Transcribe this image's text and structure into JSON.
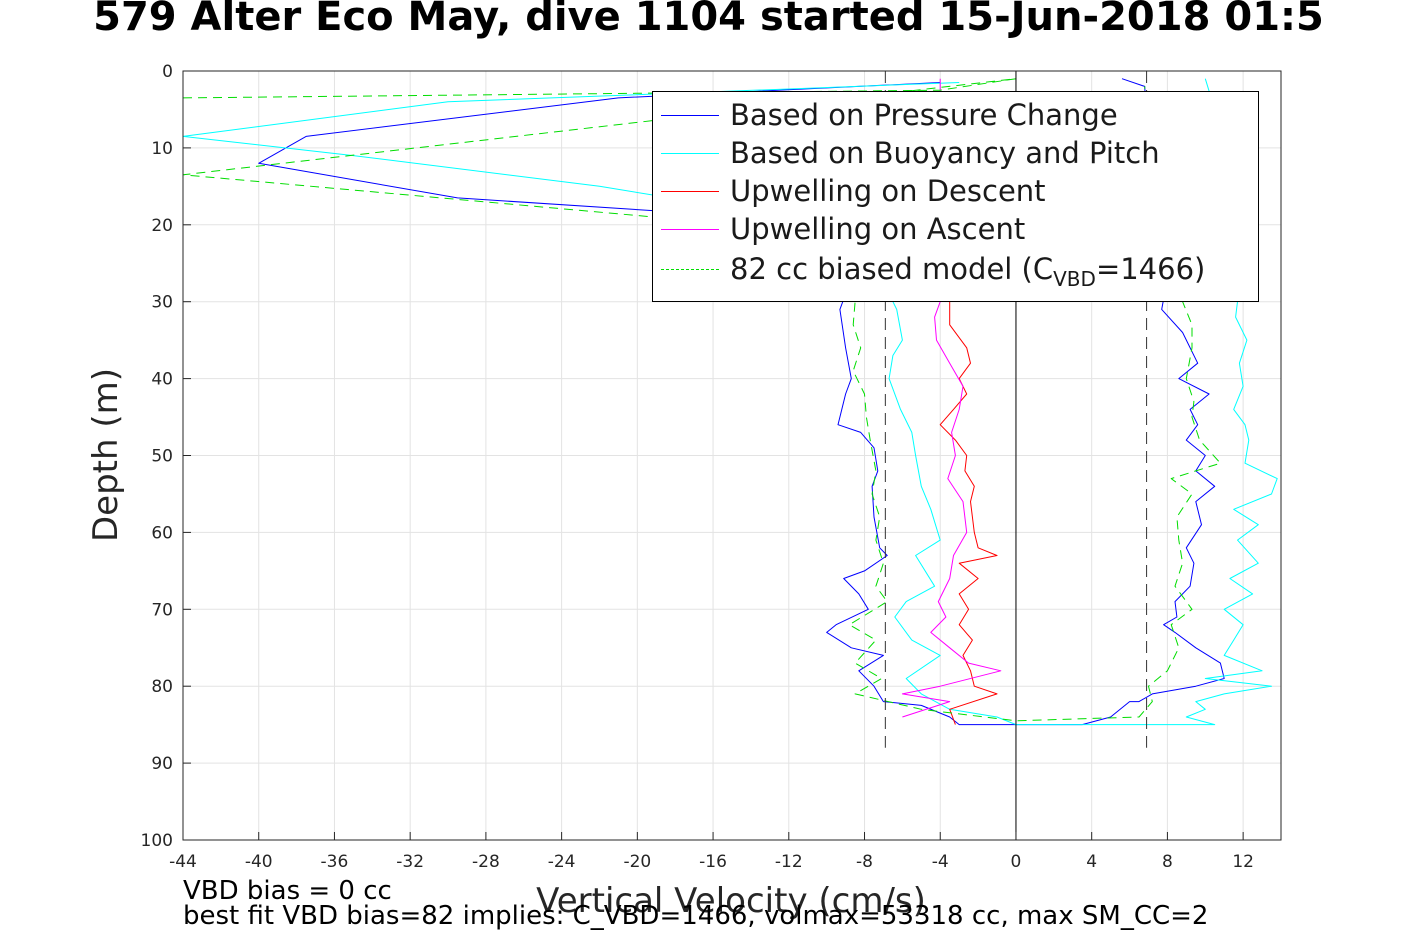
{
  "title": "579 Alter Eco May, dive 1104 started 15-Jun-2018 01:5",
  "footer": {
    "line1": "VBD bias = 0 cc",
    "line2": "best fit VBD bias=82 implies: C_VBD=1466, volmax=53318 cc, max SM_CC=2"
  },
  "legend": {
    "items": [
      {
        "label": "Based on Pressure Change",
        "color": "#0000ff",
        "style": "solid"
      },
      {
        "label": "Based on Buoyancy and Pitch",
        "color": "#00ffff",
        "style": "solid"
      },
      {
        "label": "Upwelling on Descent",
        "color": "#ff0000",
        "style": "solid"
      },
      {
        "label": "Upwelling on Ascent",
        "color": "#ff00ff",
        "style": "solid"
      },
      {
        "label_pre": "82 cc biased model (C",
        "label_sub": "VBD",
        "label_post": "=1466)",
        "color": "#00dd00",
        "style": "dashed"
      }
    ]
  },
  "chart_data": {
    "type": "line",
    "title": "579 Alter Eco May, dive 1104 started 15-Jun-2018 01:5",
    "xlabel": "Vertical Velocity (cm/s)",
    "ylabel": "Depth (m)",
    "xlim": [
      -44,
      14
    ],
    "ylim": [
      0,
      100
    ],
    "y_reversed": true,
    "xticks": [
      -44,
      -40,
      -36,
      -32,
      -28,
      -24,
      -20,
      -16,
      -12,
      -8,
      -4,
      0,
      4,
      8,
      12
    ],
    "yticks": [
      0,
      10,
      20,
      30,
      40,
      50,
      60,
      70,
      80,
      90,
      100
    ],
    "grid": true,
    "legend_position": "top-right",
    "reference_lines": [
      {
        "x": -6.9,
        "from": 0,
        "to": 88,
        "style": "dashed",
        "color": "#333333"
      },
      {
        "x": 6.9,
        "from": 0,
        "to": 88,
        "style": "dashed",
        "color": "#333333"
      },
      {
        "x": 0,
        "from": 0,
        "to": 100,
        "style": "solid",
        "color": "#000000"
      }
    ],
    "series": [
      {
        "name": "Based on Pressure Change",
        "color": "#0000ff",
        "dash": false,
        "points": [
          [
            -4,
            1.5
          ],
          [
            -21,
            3.5
          ],
          [
            -37.5,
            8.5
          ],
          [
            -40,
            12
          ],
          [
            -29.5,
            16.5
          ],
          [
            -17,
            18.5
          ],
          [
            -12,
            20
          ],
          [
            -9.5,
            24
          ],
          [
            -9,
            29
          ],
          [
            -9.3,
            31
          ],
          [
            -9,
            36
          ],
          [
            -8.7,
            40
          ],
          [
            -9,
            42
          ],
          [
            -9.2,
            44
          ],
          [
            -9.4,
            46
          ],
          [
            -8.2,
            47
          ],
          [
            -7.5,
            49
          ],
          [
            -7.3,
            52
          ],
          [
            -7.6,
            54
          ],
          [
            -7.5,
            58
          ],
          [
            -7.2,
            62
          ],
          [
            -6.8,
            63
          ],
          [
            -8,
            65
          ],
          [
            -9.1,
            66
          ],
          [
            -8.3,
            68
          ],
          [
            -7.8,
            70
          ],
          [
            -9.5,
            72
          ],
          [
            -10,
            73
          ],
          [
            -8.7,
            75
          ],
          [
            -7,
            76
          ],
          [
            -8.3,
            78
          ],
          [
            -7.5,
            80
          ],
          [
            -7,
            82
          ],
          [
            -5,
            82.5
          ],
          [
            -3.5,
            84
          ],
          [
            -3,
            85
          ],
          [
            0,
            85
          ],
          [
            3.5,
            85
          ],
          [
            5,
            84
          ],
          [
            6,
            82
          ],
          [
            6.5,
            82
          ],
          [
            7.2,
            81
          ],
          [
            9.5,
            80
          ],
          [
            11,
            79
          ],
          [
            10.8,
            77
          ],
          [
            9.5,
            75
          ],
          [
            8.4,
            73
          ],
          [
            7.8,
            72
          ],
          [
            8.5,
            71
          ],
          [
            8.4,
            69
          ],
          [
            9.2,
            67
          ],
          [
            9.4,
            64
          ],
          [
            9,
            62
          ],
          [
            9.8,
            59
          ],
          [
            9.5,
            56
          ],
          [
            10.5,
            54
          ],
          [
            9.5,
            52
          ],
          [
            10,
            50
          ],
          [
            9,
            48
          ],
          [
            9.6,
            46
          ],
          [
            9.2,
            44
          ],
          [
            10.2,
            42
          ],
          [
            8.6,
            40
          ],
          [
            9.6,
            38
          ],
          [
            8.8,
            34
          ],
          [
            7.7,
            31
          ],
          [
            8,
            27
          ],
          [
            7.5,
            24
          ],
          [
            7.2,
            18
          ],
          [
            6.9,
            6
          ],
          [
            6.8,
            2
          ],
          [
            5.6,
            1
          ]
        ]
      },
      {
        "name": "Based on Buoyancy and Pitch",
        "color": "#00ffff",
        "dash": false,
        "points": [
          [
            -3,
            1.5
          ],
          [
            -30,
            4
          ],
          [
            -44,
            8.5
          ],
          [
            -35,
            11
          ],
          [
            -22,
            15
          ],
          [
            -17,
            17
          ],
          [
            -9,
            20
          ],
          [
            -7,
            24
          ],
          [
            -6.7,
            29
          ],
          [
            -6.3,
            31
          ],
          [
            -6,
            35
          ],
          [
            -6.5,
            37
          ],
          [
            -6.7,
            40
          ],
          [
            -6.1,
            44
          ],
          [
            -5.5,
            47
          ],
          [
            -5.3,
            50
          ],
          [
            -5,
            54
          ],
          [
            -4.5,
            57
          ],
          [
            -4,
            61
          ],
          [
            -5.3,
            63
          ],
          [
            -4.3,
            67
          ],
          [
            -5.8,
            69
          ],
          [
            -6.4,
            71
          ],
          [
            -5.5,
            74
          ],
          [
            -4,
            76
          ],
          [
            -5.8,
            79
          ],
          [
            -5,
            81
          ],
          [
            -3.5,
            83
          ],
          [
            -1,
            84
          ],
          [
            0,
            85
          ],
          [
            5,
            85
          ],
          [
            10.5,
            85
          ],
          [
            9,
            84
          ],
          [
            10,
            83
          ],
          [
            9.5,
            82
          ],
          [
            11,
            81
          ],
          [
            13.5,
            80
          ],
          [
            10,
            79
          ],
          [
            13,
            78
          ],
          [
            11,
            76
          ],
          [
            11.5,
            74
          ],
          [
            12,
            72
          ],
          [
            11,
            70
          ],
          [
            12.5,
            68
          ],
          [
            11.3,
            66
          ],
          [
            12.8,
            64
          ],
          [
            11.7,
            61
          ],
          [
            12.8,
            59
          ],
          [
            11.5,
            57
          ],
          [
            13.5,
            55
          ],
          [
            13.8,
            53
          ],
          [
            12.1,
            51
          ],
          [
            12.3,
            48
          ],
          [
            12.1,
            46
          ],
          [
            11.5,
            44
          ],
          [
            12,
            41
          ],
          [
            11.8,
            38
          ],
          [
            12.2,
            35
          ],
          [
            11.6,
            32
          ],
          [
            11.8,
            28
          ],
          [
            11,
            22
          ],
          [
            10.5,
            16
          ],
          [
            11,
            10
          ],
          [
            10.5,
            5
          ],
          [
            10,
            1
          ]
        ]
      },
      {
        "name": "Upwelling on Descent",
        "color": "#ff0000",
        "dash": false,
        "points": [
          [
            -3.5,
            30
          ],
          [
            -3.5,
            33
          ],
          [
            -2.6,
            36
          ],
          [
            -2.4,
            38
          ],
          [
            -3,
            40
          ],
          [
            -2.6,
            42
          ],
          [
            -3.3,
            44
          ],
          [
            -4,
            46
          ],
          [
            -3.2,
            48
          ],
          [
            -2.6,
            50
          ],
          [
            -2.7,
            52
          ],
          [
            -2.2,
            54
          ],
          [
            -2.4,
            56
          ],
          [
            -2.3,
            58
          ],
          [
            -2.2,
            60
          ],
          [
            -2,
            62
          ],
          [
            -1,
            63
          ],
          [
            -3,
            64
          ],
          [
            -2,
            66
          ],
          [
            -3,
            68
          ],
          [
            -2.5,
            70
          ],
          [
            -3,
            72
          ],
          [
            -2.3,
            74
          ],
          [
            -2.8,
            76
          ],
          [
            -2.4,
            78
          ],
          [
            -2.2,
            80
          ],
          [
            -1,
            81
          ],
          [
            -3.5,
            83
          ],
          [
            -3.2,
            85
          ]
        ]
      },
      {
        "name": "Upwelling on Ascent",
        "color": "#ff00ff",
        "dash": false,
        "points": [
          [
            -4,
            1
          ],
          [
            -4,
            30
          ],
          [
            -4.3,
            32
          ],
          [
            -4.2,
            35
          ],
          [
            -3.5,
            38
          ],
          [
            -2.8,
            41
          ],
          [
            -3,
            44
          ],
          [
            -3.4,
            47
          ],
          [
            -3.2,
            50
          ],
          [
            -3.6,
            53
          ],
          [
            -2.8,
            56
          ],
          [
            -2.6,
            60
          ],
          [
            -3.3,
            63
          ],
          [
            -3.5,
            66
          ],
          [
            -4.1,
            69
          ],
          [
            -3.7,
            71
          ],
          [
            -4.5,
            73
          ],
          [
            -3.5,
            75
          ],
          [
            -2.5,
            77
          ],
          [
            -0.8,
            78
          ],
          [
            -4,
            80
          ],
          [
            -6,
            81
          ],
          [
            -3.5,
            82
          ],
          [
            -6,
            84
          ]
        ]
      },
      {
        "name": "82 cc biased model (C_VBD=1466)",
        "color": "#00dd00",
        "dash": true,
        "points": [
          [
            -44,
            3.5
          ],
          [
            -4,
            2.5
          ],
          [
            0,
            1
          ],
          [
            -44,
            13.5
          ],
          [
            -10,
            21
          ],
          [
            -8.5,
            25
          ],
          [
            -8.5,
            30
          ],
          [
            -8.6,
            33
          ],
          [
            -8.2,
            36
          ],
          [
            -8.6,
            39
          ],
          [
            -8,
            42
          ],
          [
            -7.9,
            45
          ],
          [
            -7.7,
            48
          ],
          [
            -7.4,
            52
          ],
          [
            -7.6,
            55
          ],
          [
            -7.2,
            58
          ],
          [
            -7.4,
            61
          ],
          [
            -7,
            64
          ],
          [
            -7.4,
            67
          ],
          [
            -6.8,
            69
          ],
          [
            -8.8,
            72
          ],
          [
            -7.4,
            74
          ],
          [
            -8.5,
            77
          ],
          [
            -7.1,
            79
          ],
          [
            -8.5,
            81
          ],
          [
            -5,
            83
          ],
          [
            0,
            84.5
          ],
          [
            6.5,
            84
          ],
          [
            7.2,
            82
          ],
          [
            7,
            80
          ],
          [
            8,
            78
          ],
          [
            8.6,
            75
          ],
          [
            8.2,
            72
          ],
          [
            9.3,
            70
          ],
          [
            8.4,
            67
          ],
          [
            8.8,
            64
          ],
          [
            8.6,
            61
          ],
          [
            8.5,
            58
          ],
          [
            9.3,
            55
          ],
          [
            8.2,
            53
          ],
          [
            10.8,
            51
          ],
          [
            9.7,
            48
          ],
          [
            9.3,
            45
          ],
          [
            9.4,
            43
          ],
          [
            9,
            40
          ],
          [
            9.3,
            36
          ],
          [
            9.3,
            33
          ],
          [
            8.8,
            30
          ],
          [
            8,
            25
          ],
          [
            7,
            15
          ],
          [
            6.9,
            8
          ],
          [
            6.8,
            2
          ]
        ]
      }
    ]
  }
}
